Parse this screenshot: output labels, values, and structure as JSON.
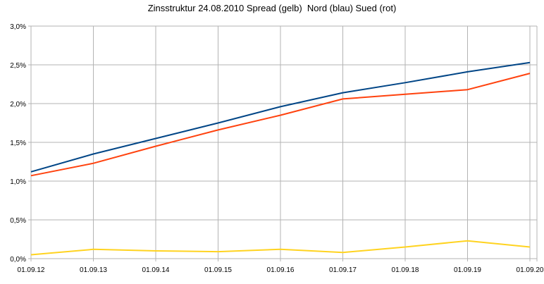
{
  "chart_data": {
    "type": "line",
    "title": "Zinsstruktur 24.08.2010 Spread (gelb)  Nord (blau) Sued (rot)",
    "categories": [
      "01.09.12",
      "01.09.13",
      "01.09.14",
      "01.09.15",
      "01.09.16",
      "01.09.17",
      "01.09.18",
      "01.09.19",
      "01.09.20"
    ],
    "ylim": [
      0,
      3.0
    ],
    "yticks": [
      "0,0%",
      "0,5%",
      "1,0%",
      "1,5%",
      "2,0%",
      "2,5%",
      "3,0%"
    ],
    "ytick_values": [
      0,
      0.5,
      1.0,
      1.5,
      2.0,
      2.5,
      3.0
    ],
    "grid": true,
    "series": [
      {
        "color": "#004586",
        "values": [
          1.12,
          1.35,
          1.55,
          1.75,
          1.96,
          2.14,
          2.27,
          2.41,
          2.53
        ]
      },
      {
        "color": "#ff420e",
        "values": [
          1.07,
          1.23,
          1.45,
          1.66,
          1.85,
          2.06,
          2.12,
          2.18,
          2.39
        ]
      },
      {
        "color": "#ffd320",
        "values": [
          0.05,
          0.12,
          0.1,
          0.09,
          0.12,
          0.08,
          0.15,
          0.23,
          0.15
        ]
      }
    ]
  }
}
